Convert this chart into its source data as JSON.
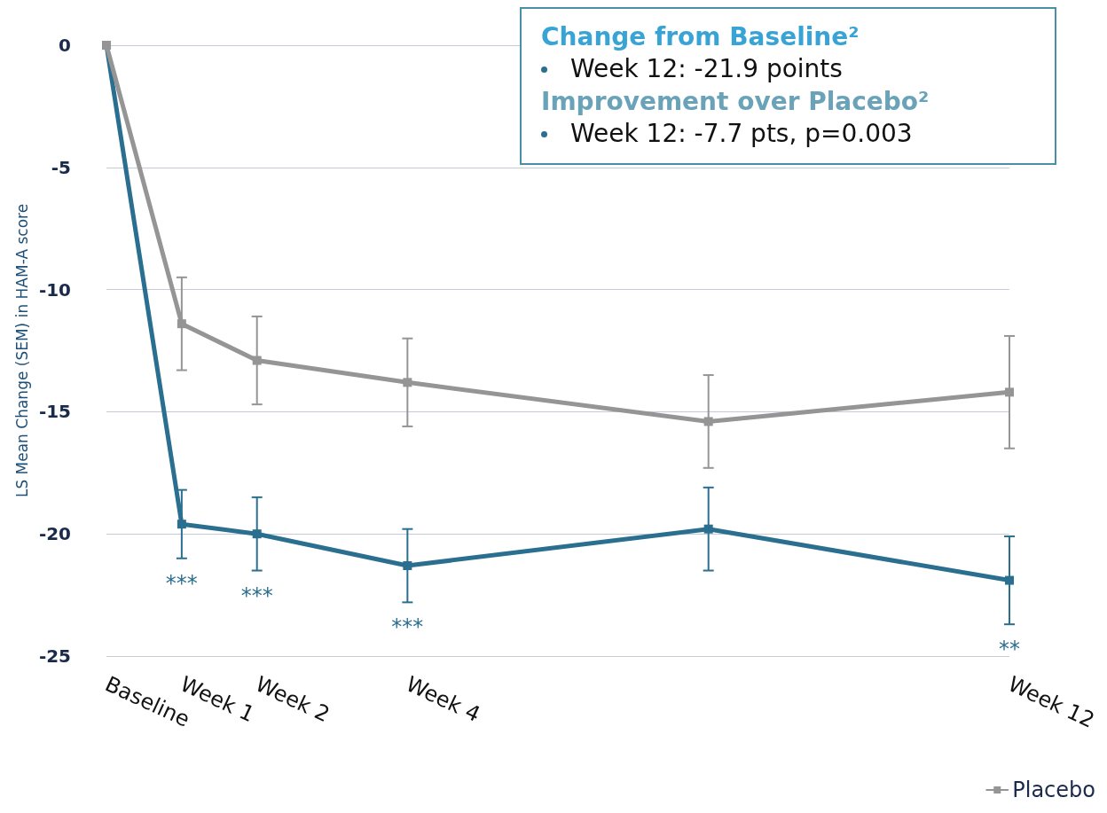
{
  "chart_data": {
    "type": "line",
    "ylabel": "LS Mean Change (SEM) in HAM-A score",
    "categories": [
      "Baseline",
      "Week 1",
      "Week 2",
      null,
      "Week 4",
      null,
      null,
      null,
      null,
      null,
      null,
      null,
      "Week 12"
    ],
    "ylim": [
      -25,
      0
    ],
    "yticks": [
      0,
      -5,
      -10,
      -15,
      -20,
      -25
    ],
    "series": [
      {
        "color": "#2a6f8f",
        "values": [
          0,
          -19.6,
          -20.0,
          null,
          -21.3,
          null,
          null,
          null,
          -19.8,
          null,
          null,
          null,
          -21.9
        ],
        "errors": [
          null,
          1.4,
          1.5,
          null,
          1.5,
          null,
          null,
          null,
          1.7,
          null,
          null,
          null,
          1.8
        ]
      },
      {
        "name": "Placebo",
        "color": "#959595",
        "values": [
          0,
          -11.4,
          -12.9,
          null,
          -13.8,
          null,
          null,
          null,
          -15.4,
          null,
          null,
          null,
          -14.2
        ],
        "errors": [
          null,
          1.9,
          1.8,
          null,
          1.8,
          null,
          null,
          null,
          1.9,
          null,
          null,
          null,
          2.3
        ]
      }
    ],
    "annotations": [
      "Change from Baseline²",
      "Week 12: -21.9 points",
      "Improvement over Placebo²",
      "Week 12: -7.7 pts, p=0.003",
      {
        "text": "***",
        "x": "Week 1",
        "y": -19.6
      },
      {
        "text": "***",
        "x": "Week 2",
        "y": -20.0
      },
      {
        "text": "***",
        "x": "Week 4",
        "y": -21.3
      },
      {
        "text": "**",
        "x": "Week 12",
        "y": -21.9
      }
    ],
    "grid": "y",
    "legend": "bottom right",
    "marker": "square",
    "line_style": "solid"
  }
}
